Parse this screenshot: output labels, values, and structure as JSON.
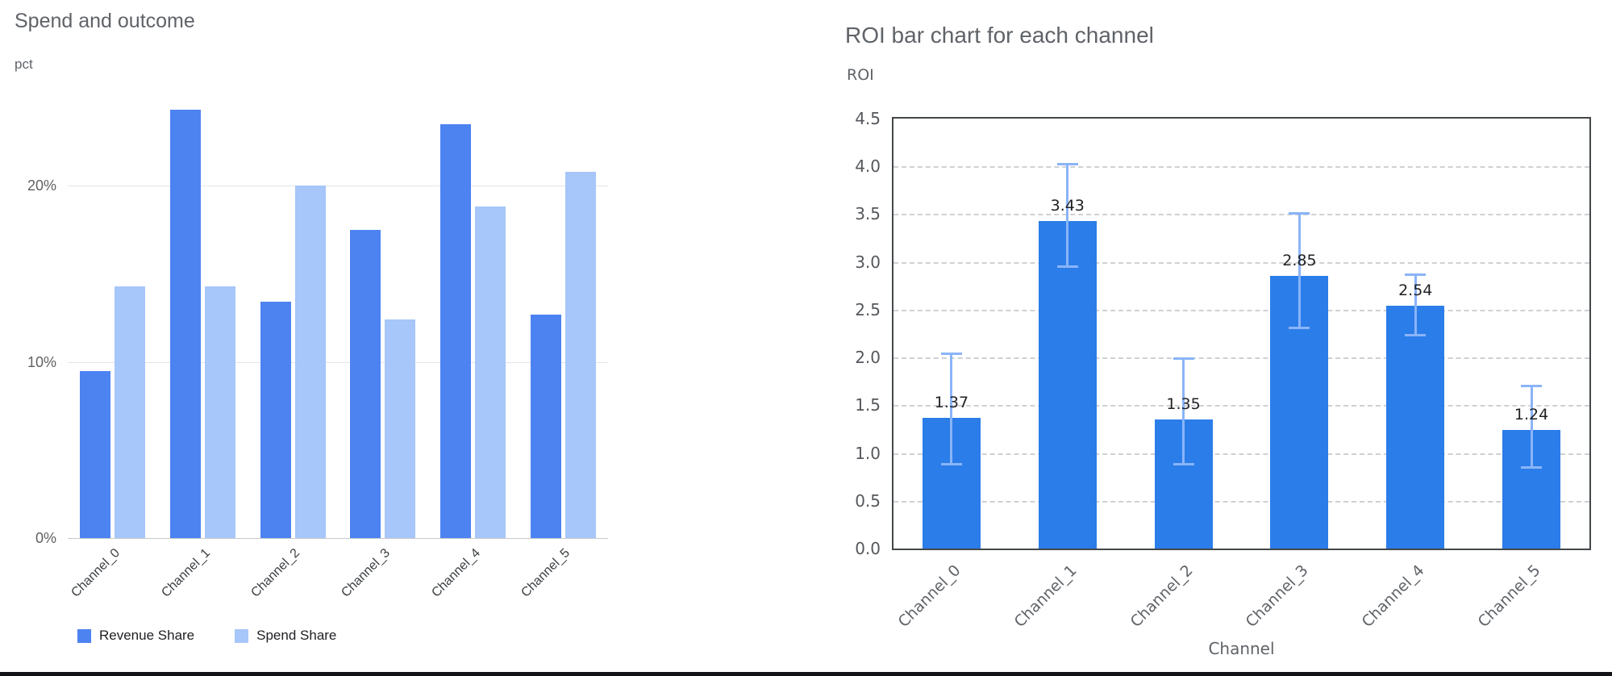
{
  "chart_data": [
    {
      "type": "bar",
      "title": "Spend and outcome",
      "xlabel": "",
      "ylabel": "pct",
      "categories": [
        "Channel_0",
        "Channel_1",
        "Channel_2",
        "Channel_3",
        "Channel_4",
        "Channel_5"
      ],
      "series": [
        {
          "name": "Revenue Share",
          "color": "#4c83f1",
          "values": [
            9.5,
            24.3,
            13.4,
            17.5,
            23.5,
            12.7
          ]
        },
        {
          "name": "Spend Share",
          "color": "#a7c6f9",
          "values": [
            14.3,
            14.3,
            20.0,
            12.4,
            18.8,
            20.8
          ]
        }
      ],
      "ylim": [
        0,
        25
      ],
      "yticks": [
        0,
        10,
        20
      ],
      "ytick_labels": [
        "0%",
        "10%",
        "20%"
      ],
      "legend_position": "bottom",
      "grid": "horizontal-solid"
    },
    {
      "type": "bar",
      "title": "ROI bar chart for each channel",
      "xlabel": "Channel",
      "ylabel": "ROI",
      "categories": [
        "Channel_0",
        "Channel_1",
        "Channel_2",
        "Channel_3",
        "Channel_4",
        "Channel_5"
      ],
      "values": [
        1.37,
        3.43,
        1.35,
        2.85,
        2.54,
        1.24
      ],
      "value_labels": [
        "1.37",
        "3.43",
        "1.35",
        "2.85",
        "2.54",
        "1.24"
      ],
      "error_upper": [
        2.04,
        4.02,
        1.99,
        3.51,
        2.87,
        1.7
      ],
      "error_lower": [
        0.88,
        2.95,
        0.88,
        2.31,
        2.23,
        0.85
      ],
      "bar_color": "#2b7de9",
      "error_color": "#8ab4f8",
      "ylim": [
        0,
        4.5
      ],
      "yticks": [
        0,
        0.5,
        1,
        1.5,
        2,
        2.5,
        3,
        3.5,
        4,
        4.5
      ],
      "ytick_labels": [
        "0.0",
        "0.5",
        "1.0",
        "1.5",
        "2.0",
        "2.5",
        "3.0",
        "3.5",
        "4.0",
        "4.5"
      ],
      "grid": "horizontal-dashed"
    }
  ]
}
